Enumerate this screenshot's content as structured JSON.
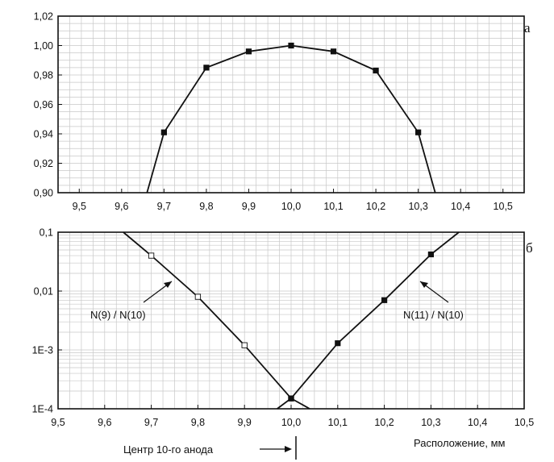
{
  "chart_data": [
    {
      "type": "line",
      "panel_label": "а",
      "x_ticks": [
        "9,5",
        "9,6",
        "9,7",
        "9,8",
        "9,9",
        "10,0",
        "10,1",
        "10,2",
        "10,3",
        "10,4",
        "10,5"
      ],
      "y_ticks": [
        "0,90",
        "0,92",
        "0,94",
        "0,96",
        "0,98",
        "1,00",
        "1,02"
      ],
      "xlim": [
        9.45,
        10.55
      ],
      "ylim": [
        0.9,
        1.02
      ],
      "grid": true,
      "series": [
        {
          "marker": "filled-square",
          "x": [
            9.66,
            9.7,
            9.8,
            9.9,
            10.0,
            10.1,
            10.2,
            10.3,
            10.34
          ],
          "y": [
            0.9,
            0.941,
            0.985,
            0.996,
            1.0,
            0.996,
            0.983,
            0.941,
            0.9
          ],
          "marked": [
            false,
            true,
            true,
            true,
            true,
            true,
            true,
            true,
            false
          ]
        }
      ]
    },
    {
      "type": "line",
      "panel_label": "б",
      "x_ticks": [
        "9,5",
        "9,6",
        "9,7",
        "9,8",
        "9,9",
        "10,0",
        "10,1",
        "10,2",
        "10,3",
        "10,4",
        "10,5"
      ],
      "y_ticks": [
        "1E-4",
        "1E-3",
        "0,01",
        "0,1"
      ],
      "xlim": [
        9.5,
        10.5
      ],
      "ylim": [
        0.0001,
        0.1
      ],
      "yscale": "log",
      "grid": true,
      "xlabel": "Расположение, мм",
      "annotations": {
        "center_label": "Центр 10-го анода",
        "left_series_label": "N(9) / N(10)",
        "right_series_label": "N(11) / N(10)"
      },
      "series": [
        {
          "name": "N(9) / N(10)",
          "marker": "open-square",
          "x": [
            9.64,
            9.7,
            9.8,
            9.9,
            10.0,
            10.04
          ],
          "y": [
            0.1,
            0.04,
            0.008,
            0.0012,
            0.00015,
            0.0001
          ],
          "marked": [
            false,
            true,
            true,
            true,
            true,
            false
          ]
        },
        {
          "name": "N(11) / N(10)",
          "marker": "filled-square",
          "x": [
            9.97,
            10.0,
            10.1,
            10.2,
            10.3,
            10.36
          ],
          "y": [
            0.0001,
            0.00015,
            0.0013,
            0.007,
            0.042,
            0.1
          ],
          "marked": [
            false,
            true,
            true,
            true,
            true,
            false
          ]
        }
      ]
    }
  ]
}
